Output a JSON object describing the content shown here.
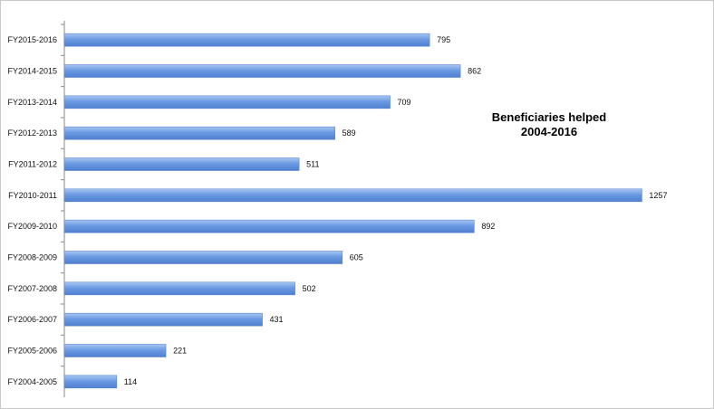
{
  "chart_data": {
    "type": "bar",
    "orientation": "horizontal",
    "title": "Beneficiaries helped\n2004-2016",
    "xlabel": "",
    "ylabel": "",
    "categories": [
      "FY2015-2016",
      "FY2014-2015",
      "FY2013-2014",
      "FY2012-2013",
      "FY2011-2012",
      "FY2010-2011",
      "FY2009-2010",
      "FY2008-2009",
      "FY2007-2008",
      "FY2006-2007",
      "FY2005-2006",
      "FY2004-2005"
    ],
    "values": [
      795,
      862,
      709,
      589,
      511,
      1257,
      892,
      605,
      502,
      431,
      221,
      114
    ],
    "xlim": [
      0,
      1300
    ],
    "grid": false,
    "legend": "none",
    "data_labels": true,
    "bar_color": "#6b9ae2",
    "bar_color_light": "#a9c6f2",
    "bar_color_dark": "#4f7fd0"
  }
}
